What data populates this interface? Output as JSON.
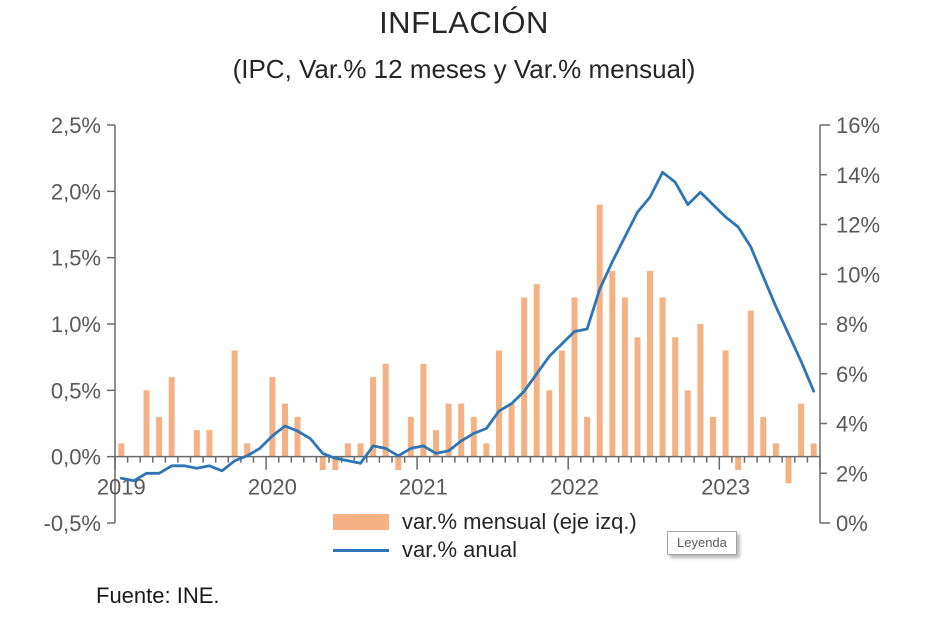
{
  "title": "INFLACIÓN",
  "subtitle": "(IPC, Var.% 12 meses y Var.% mensual)",
  "source": "Fuente: INE.",
  "tooltip": "Leyenda",
  "legend": {
    "bars": "var.% mensual (eje izq.)",
    "line": "var.% anual"
  },
  "colors": {
    "bar": "#F4B183",
    "line": "#2E75B6",
    "axis": "#6b6b6b",
    "tick_label": "#595959",
    "title_text": "#262626"
  },
  "chart_data": {
    "type": "bar+line",
    "title": "INFLACIÓN",
    "subtitle": "(IPC, Var.% 12 meses y Var.% mensual)",
    "legend_position": "bottom",
    "grid": false,
    "x_ticks": [
      "2019",
      "2020",
      "2021",
      "2022",
      "2023"
    ],
    "months": [
      "2019-01",
      "2019-02",
      "2019-03",
      "2019-04",
      "2019-05",
      "2019-06",
      "2019-07",
      "2019-08",
      "2019-09",
      "2019-10",
      "2019-11",
      "2019-12",
      "2020-01",
      "2020-02",
      "2020-03",
      "2020-04",
      "2020-05",
      "2020-06",
      "2020-07",
      "2020-08",
      "2020-09",
      "2020-10",
      "2020-11",
      "2020-12",
      "2021-01",
      "2021-02",
      "2021-03",
      "2021-04",
      "2021-05",
      "2021-06",
      "2021-07",
      "2021-08",
      "2021-09",
      "2021-10",
      "2021-11",
      "2021-12",
      "2022-01",
      "2022-02",
      "2022-03",
      "2022-04",
      "2022-05",
      "2022-06",
      "2022-07",
      "2022-08",
      "2022-09",
      "2022-10",
      "2022-11",
      "2022-12",
      "2023-01",
      "2023-02",
      "2023-03",
      "2023-04",
      "2023-05",
      "2023-06",
      "2023-07",
      "2023-08"
    ],
    "series": [
      {
        "name": "var.% mensual (eje izq.)",
        "type": "bar",
        "axis": "left",
        "values": [
          0.1,
          0.0,
          0.5,
          0.3,
          0.6,
          0.0,
          0.2,
          0.2,
          0.0,
          0.8,
          0.1,
          0.0,
          0.6,
          0.4,
          0.3,
          0.0,
          -0.1,
          -0.1,
          0.1,
          0.1,
          0.6,
          0.7,
          -0.1,
          0.3,
          0.7,
          0.2,
          0.4,
          0.4,
          0.3,
          0.1,
          0.8,
          0.4,
          1.2,
          1.3,
          0.5,
          0.8,
          1.2,
          0.3,
          1.9,
          1.4,
          1.2,
          0.9,
          1.4,
          1.2,
          0.9,
          0.5,
          1.0,
          0.3,
          0.8,
          -0.1,
          1.1,
          0.3,
          0.1,
          -0.2,
          0.4,
          0.1
        ]
      },
      {
        "name": "var.% anual",
        "type": "line",
        "axis": "right",
        "values": [
          1.8,
          1.7,
          2.0,
          2.0,
          2.3,
          2.3,
          2.2,
          2.3,
          2.1,
          2.5,
          2.7,
          3.0,
          3.5,
          3.9,
          3.7,
          3.4,
          2.8,
          2.6,
          2.5,
          2.4,
          3.1,
          3.0,
          2.7,
          3.0,
          3.1,
          2.8,
          2.9,
          3.3,
          3.6,
          3.8,
          4.5,
          4.8,
          5.3,
          6.0,
          6.7,
          7.2,
          7.7,
          7.8,
          9.4,
          10.5,
          11.5,
          12.5,
          13.1,
          14.1,
          13.7,
          12.8,
          13.3,
          12.8,
          12.3,
          11.9,
          11.1,
          9.9,
          8.7,
          7.6,
          6.5,
          5.3
        ]
      }
    ],
    "left_axis": {
      "min": -0.5,
      "max": 2.5,
      "ticks": [
        "2,5%",
        "2,0%",
        "1,5%",
        "1,0%",
        "0,5%",
        "0,0%",
        "-0,5%"
      ],
      "tick_values": [
        2.5,
        2.0,
        1.5,
        1.0,
        0.5,
        0.0,
        -0.5
      ]
    },
    "right_axis": {
      "min": 0,
      "max": 16,
      "ticks": [
        "16%",
        "14%",
        "12%",
        "10%",
        "8%",
        "6%",
        "4%",
        "2%",
        "0%"
      ],
      "tick_values": [
        16,
        14,
        12,
        10,
        8,
        6,
        4,
        2,
        0
      ]
    }
  }
}
